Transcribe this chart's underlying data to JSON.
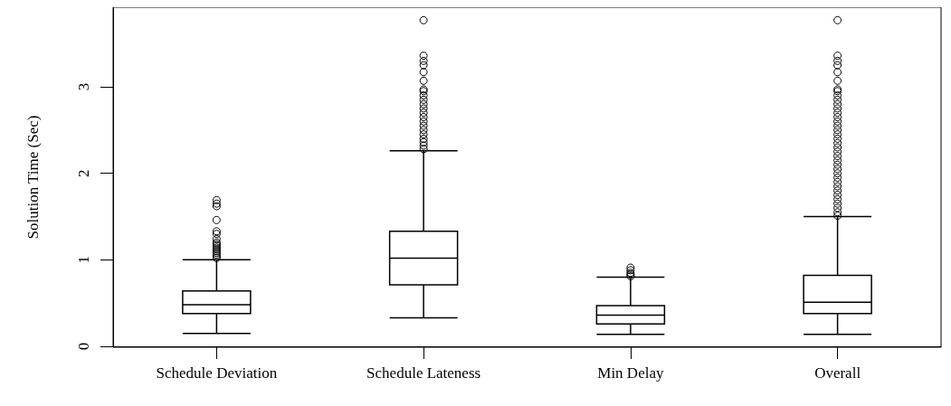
{
  "chart_data": {
    "type": "box",
    "ylabel": "Solution Time (Sec)",
    "categories": [
      "Schedule Deviation",
      "Schedule Lateness",
      "Min Delay",
      "Overall"
    ],
    "boxes": [
      {
        "low": 0.15,
        "q1": 0.38,
        "median": 0.48,
        "q3": 0.64,
        "high": 1.0,
        "outliers": [
          1.02,
          1.04,
          1.06,
          1.08,
          1.1,
          1.12,
          1.14,
          1.16,
          1.18,
          1.2,
          1.24,
          1.3,
          1.33,
          1.46,
          1.62,
          1.65,
          1.69
        ]
      },
      {
        "low": 0.33,
        "q1": 0.71,
        "median": 1.02,
        "q3": 1.33,
        "high": 2.26,
        "outliers": [
          2.28,
          2.32,
          2.36,
          2.4,
          2.45,
          2.5,
          2.55,
          2.6,
          2.65,
          2.7,
          2.75,
          2.8,
          2.85,
          2.9,
          2.95,
          2.97,
          3.07,
          3.17,
          3.25,
          3.3,
          3.36,
          3.77
        ]
      },
      {
        "low": 0.14,
        "q1": 0.26,
        "median": 0.36,
        "q3": 0.47,
        "high": 0.8,
        "outliers": [
          0.81,
          0.83,
          0.85,
          0.88,
          0.91
        ]
      },
      {
        "low": 0.14,
        "q1": 0.38,
        "median": 0.51,
        "q3": 0.82,
        "high": 1.5,
        "outliers": [
          1.51,
          1.55,
          1.6,
          1.65,
          1.7,
          1.75,
          1.8,
          1.85,
          1.9,
          1.95,
          2.0,
          2.05,
          2.1,
          2.15,
          2.2,
          2.25,
          2.3,
          2.35,
          2.4,
          2.45,
          2.5,
          2.55,
          2.6,
          2.65,
          2.7,
          2.75,
          2.8,
          2.85,
          2.9,
          2.95,
          2.97,
          3.07,
          3.17,
          3.25,
          3.3,
          3.36,
          3.77
        ]
      }
    ],
    "color": "#000000",
    "marker": "circle",
    "ylim": [
      -0.01,
      3.92
    ],
    "yticks": [
      0,
      1,
      2,
      3
    ]
  }
}
